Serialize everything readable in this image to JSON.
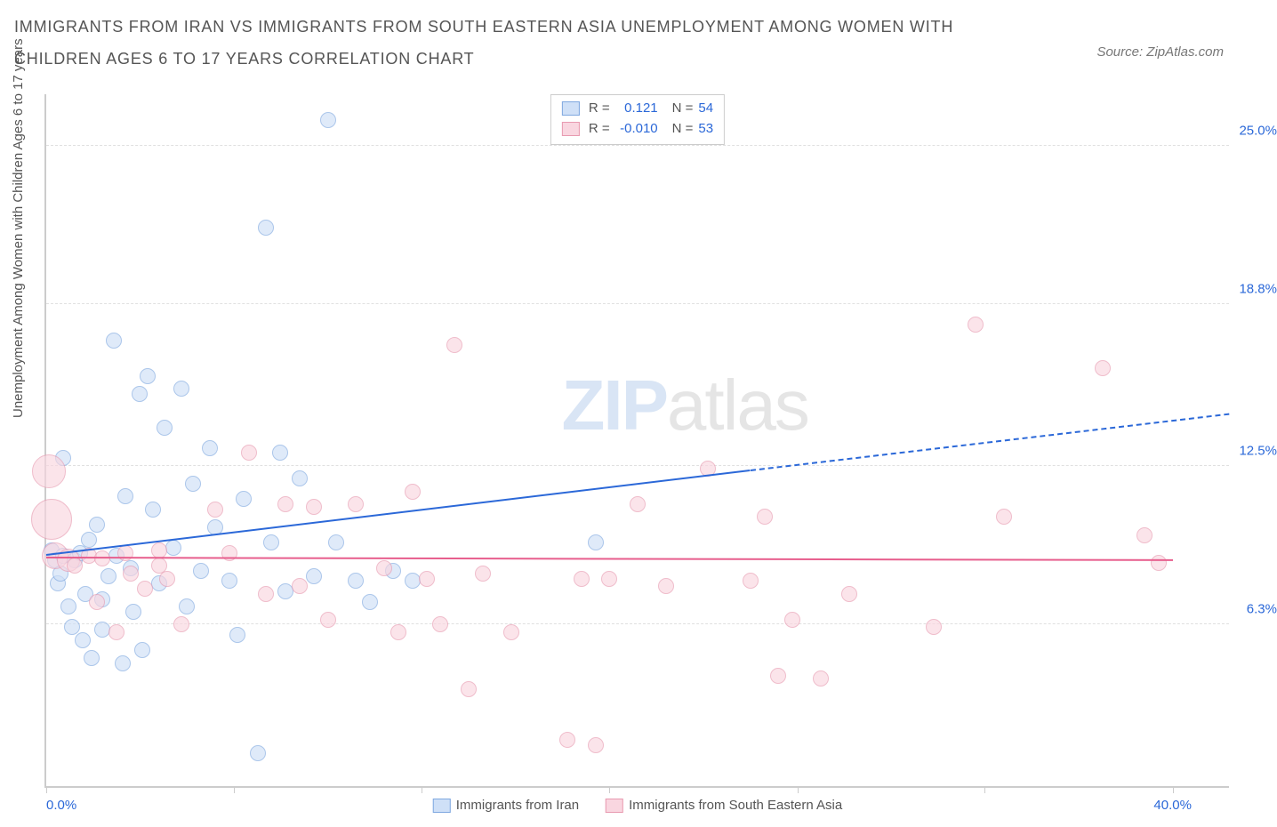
{
  "title": "IMMIGRANTS FROM IRAN VS IMMIGRANTS FROM SOUTH EASTERN ASIA UNEMPLOYMENT AMONG WOMEN WITH CHILDREN AGES 6 TO 17 YEARS CORRELATION CHART",
  "source": "Source: ZipAtlas.com",
  "ylabel": "Unemployment Among Women with Children Ages 6 to 17 years",
  "watermark_a": "ZIP",
  "watermark_b": "atlas",
  "chart": {
    "type": "scatter",
    "xlim": [
      0,
      42
    ],
    "ylim": [
      0,
      27
    ],
    "xticks": [
      0,
      6.67,
      13.33,
      20,
      26.67,
      33.33,
      40
    ],
    "xtick_labels": {
      "0": "0.0%",
      "40": "40.0%"
    },
    "yticks": [
      6.3,
      12.5,
      18.8,
      25.0
    ],
    "ytick_labels": [
      "6.3%",
      "12.5%",
      "18.8%",
      "25.0%"
    ],
    "grid_color": "#e0e0e0",
    "axis_color": "#cccccc",
    "background_color": "#ffffff",
    "label_fontsize": 15,
    "title_fontsize": 18,
    "title_color": "#555555",
    "tick_label_color": "#2b68d8"
  },
  "series": [
    {
      "name": "Immigrants from Iran",
      "fill": "#cfe0f7",
      "stroke": "#7fa8e0",
      "fill_opacity": 0.65,
      "R_label": "R = ",
      "R": "0.121",
      "N_label": "N = ",
      "N": "54",
      "marker_radius_default": 8,
      "trend": {
        "x1": 0,
        "y1": 9.0,
        "x2": 25,
        "y2": 12.3,
        "extend_x": 42,
        "extend_y": 14.5,
        "color": "#2b68d8"
      },
      "points": [
        {
          "x": 0.2,
          "y": 9.2,
          "r": 8
        },
        {
          "x": 0.3,
          "y": 8.8,
          "r": 8
        },
        {
          "x": 0.4,
          "y": 7.9,
          "r": 8
        },
        {
          "x": 0.5,
          "y": 8.3,
          "r": 8
        },
        {
          "x": 0.6,
          "y": 9.0,
          "r": 8
        },
        {
          "x": 0.6,
          "y": 12.8,
          "r": 8
        },
        {
          "x": 0.8,
          "y": 7.0,
          "r": 8
        },
        {
          "x": 0.9,
          "y": 6.2,
          "r": 8
        },
        {
          "x": 1.0,
          "y": 8.8,
          "r": 8
        },
        {
          "x": 1.2,
          "y": 9.1,
          "r": 8
        },
        {
          "x": 1.3,
          "y": 5.7,
          "r": 8
        },
        {
          "x": 1.4,
          "y": 7.5,
          "r": 8
        },
        {
          "x": 1.5,
          "y": 9.6,
          "r": 8
        },
        {
          "x": 1.6,
          "y": 5.0,
          "r": 8
        },
        {
          "x": 1.8,
          "y": 10.2,
          "r": 8
        },
        {
          "x": 2.0,
          "y": 7.3,
          "r": 8
        },
        {
          "x": 2.0,
          "y": 6.1,
          "r": 8
        },
        {
          "x": 2.2,
          "y": 8.2,
          "r": 8
        },
        {
          "x": 2.4,
          "y": 17.4,
          "r": 8
        },
        {
          "x": 2.5,
          "y": 9.0,
          "r": 8
        },
        {
          "x": 2.7,
          "y": 4.8,
          "r": 8
        },
        {
          "x": 2.8,
          "y": 11.3,
          "r": 8
        },
        {
          "x": 3.0,
          "y": 8.5,
          "r": 8
        },
        {
          "x": 3.1,
          "y": 6.8,
          "r": 8
        },
        {
          "x": 3.3,
          "y": 15.3,
          "r": 8
        },
        {
          "x": 3.4,
          "y": 5.3,
          "r": 8
        },
        {
          "x": 3.6,
          "y": 16.0,
          "r": 8
        },
        {
          "x": 3.8,
          "y": 10.8,
          "r": 8
        },
        {
          "x": 4.0,
          "y": 7.9,
          "r": 8
        },
        {
          "x": 4.2,
          "y": 14.0,
          "r": 8
        },
        {
          "x": 4.5,
          "y": 9.3,
          "r": 8
        },
        {
          "x": 4.8,
          "y": 15.5,
          "r": 8
        },
        {
          "x": 5.0,
          "y": 7.0,
          "r": 8
        },
        {
          "x": 5.2,
          "y": 11.8,
          "r": 8
        },
        {
          "x": 5.5,
          "y": 8.4,
          "r": 8
        },
        {
          "x": 5.8,
          "y": 13.2,
          "r": 8
        },
        {
          "x": 6.0,
          "y": 10.1,
          "r": 8
        },
        {
          "x": 6.5,
          "y": 8.0,
          "r": 8
        },
        {
          "x": 6.8,
          "y": 5.9,
          "r": 8
        },
        {
          "x": 7.0,
          "y": 11.2,
          "r": 8
        },
        {
          "x": 7.5,
          "y": 1.3,
          "r": 8
        },
        {
          "x": 7.8,
          "y": 21.8,
          "r": 8
        },
        {
          "x": 8.0,
          "y": 9.5,
          "r": 8
        },
        {
          "x": 8.3,
          "y": 13.0,
          "r": 8
        },
        {
          "x": 8.5,
          "y": 7.6,
          "r": 8
        },
        {
          "x": 9.0,
          "y": 12.0,
          "r": 8
        },
        {
          "x": 9.5,
          "y": 8.2,
          "r": 8
        },
        {
          "x": 10.0,
          "y": 26.0,
          "r": 8
        },
        {
          "x": 10.3,
          "y": 9.5,
          "r": 8
        },
        {
          "x": 11.0,
          "y": 8.0,
          "r": 8
        },
        {
          "x": 11.5,
          "y": 7.2,
          "r": 8
        },
        {
          "x": 12.3,
          "y": 8.4,
          "r": 8
        },
        {
          "x": 13.0,
          "y": 8.0,
          "r": 8
        },
        {
          "x": 19.5,
          "y": 9.5,
          "r": 8
        }
      ]
    },
    {
      "name": "Immigrants from South Eastern Asia",
      "fill": "#f9d6e0",
      "stroke": "#e89ab0",
      "fill_opacity": 0.65,
      "R_label": "R = ",
      "R": "-0.010",
      "N_label": "N = ",
      "N": "53",
      "marker_radius_default": 8,
      "trend": {
        "x1": 0,
        "y1": 8.9,
        "x2": 40,
        "y2": 8.8,
        "color": "#e75e8d"
      },
      "points": [
        {
          "x": 0.1,
          "y": 12.3,
          "r": 18
        },
        {
          "x": 0.2,
          "y": 10.4,
          "r": 22
        },
        {
          "x": 0.3,
          "y": 9.0,
          "r": 14
        },
        {
          "x": 0.8,
          "y": 8.8,
          "r": 12
        },
        {
          "x": 1.0,
          "y": 8.6,
          "r": 8
        },
        {
          "x": 1.5,
          "y": 9.0,
          "r": 8
        },
        {
          "x": 1.8,
          "y": 7.2,
          "r": 8
        },
        {
          "x": 2.0,
          "y": 8.9,
          "r": 8
        },
        {
          "x": 2.5,
          "y": 6.0,
          "r": 8
        },
        {
          "x": 2.8,
          "y": 9.1,
          "r": 8
        },
        {
          "x": 3.0,
          "y": 8.3,
          "r": 8
        },
        {
          "x": 3.5,
          "y": 7.7,
          "r": 8
        },
        {
          "x": 4.0,
          "y": 9.2,
          "r": 8
        },
        {
          "x": 4.0,
          "y": 8.6,
          "r": 8
        },
        {
          "x": 4.3,
          "y": 8.1,
          "r": 8
        },
        {
          "x": 4.8,
          "y": 6.3,
          "r": 8
        },
        {
          "x": 6.0,
          "y": 10.8,
          "r": 8
        },
        {
          "x": 6.5,
          "y": 9.1,
          "r": 8
        },
        {
          "x": 7.2,
          "y": 13.0,
          "r": 8
        },
        {
          "x": 7.8,
          "y": 7.5,
          "r": 8
        },
        {
          "x": 8.5,
          "y": 11.0,
          "r": 8
        },
        {
          "x": 9.0,
          "y": 7.8,
          "r": 8
        },
        {
          "x": 9.5,
          "y": 10.9,
          "r": 8
        },
        {
          "x": 10.0,
          "y": 6.5,
          "r": 8
        },
        {
          "x": 11.0,
          "y": 11.0,
          "r": 8
        },
        {
          "x": 12.0,
          "y": 8.5,
          "r": 8
        },
        {
          "x": 12.5,
          "y": 6.0,
          "r": 8
        },
        {
          "x": 13.0,
          "y": 11.5,
          "r": 8
        },
        {
          "x": 13.5,
          "y": 8.1,
          "r": 8
        },
        {
          "x": 14.0,
          "y": 6.3,
          "r": 8
        },
        {
          "x": 14.5,
          "y": 17.2,
          "r": 8
        },
        {
          "x": 15.0,
          "y": 3.8,
          "r": 8
        },
        {
          "x": 15.5,
          "y": 8.3,
          "r": 8
        },
        {
          "x": 16.5,
          "y": 6.0,
          "r": 8
        },
        {
          "x": 18.5,
          "y": 1.8,
          "r": 8
        },
        {
          "x": 19.0,
          "y": 8.1,
          "r": 8
        },
        {
          "x": 19.5,
          "y": 1.6,
          "r": 8
        },
        {
          "x": 20.0,
          "y": 8.1,
          "r": 8
        },
        {
          "x": 21.0,
          "y": 11.0,
          "r": 8
        },
        {
          "x": 22.0,
          "y": 7.8,
          "r": 8
        },
        {
          "x": 23.5,
          "y": 12.4,
          "r": 8
        },
        {
          "x": 25.0,
          "y": 8.0,
          "r": 8
        },
        {
          "x": 25.5,
          "y": 10.5,
          "r": 8
        },
        {
          "x": 26.0,
          "y": 4.3,
          "r": 8
        },
        {
          "x": 26.5,
          "y": 6.5,
          "r": 8
        },
        {
          "x": 27.5,
          "y": 4.2,
          "r": 8
        },
        {
          "x": 28.5,
          "y": 7.5,
          "r": 8
        },
        {
          "x": 31.5,
          "y": 6.2,
          "r": 8
        },
        {
          "x": 33.0,
          "y": 18.0,
          "r": 8
        },
        {
          "x": 34.0,
          "y": 10.5,
          "r": 8
        },
        {
          "x": 37.5,
          "y": 16.3,
          "r": 8
        },
        {
          "x": 39.0,
          "y": 9.8,
          "r": 8
        },
        {
          "x": 39.5,
          "y": 8.7,
          "r": 8
        }
      ]
    }
  ],
  "legend_bottom": [
    {
      "label": "Immigrants from Iran",
      "series_idx": 0
    },
    {
      "label": "Immigrants from South Eastern Asia",
      "series_idx": 1
    }
  ]
}
